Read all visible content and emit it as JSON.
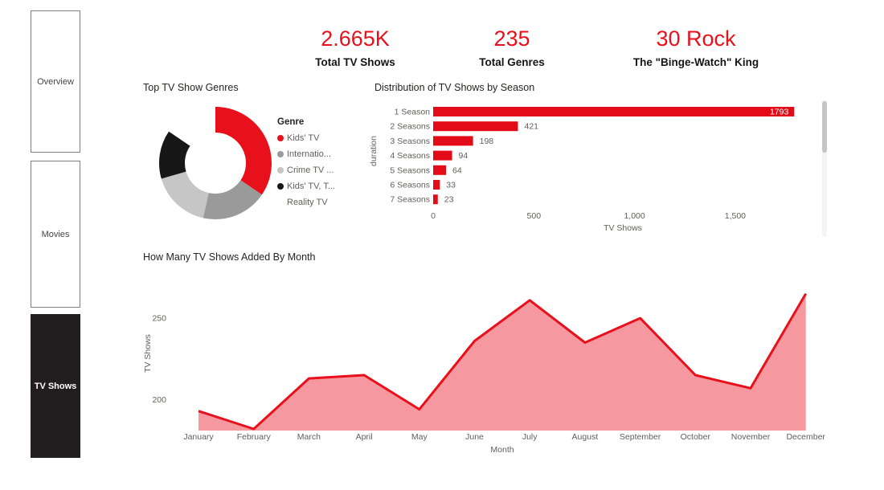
{
  "colors": {
    "accent": "#e8101a",
    "bar_red": "#e20b17",
    "area_line": "#e8101a",
    "area_fill": "#f5989f",
    "sidebar_active_bg": "#221e1f",
    "text_dark": "#252423",
    "text_muted": "#605e5c"
  },
  "sidebar": {
    "items": [
      {
        "label": "Overview",
        "active": false
      },
      {
        "label": "Movies",
        "active": false
      },
      {
        "label": "TV Shows",
        "active": true
      }
    ]
  },
  "kpis": [
    {
      "value": "2.665K",
      "label": "Total TV Shows"
    },
    {
      "value": "235",
      "label": "Total Genres"
    },
    {
      "value": "30 Rock",
      "label": "The \"Binge-Watch\" King"
    }
  ],
  "chart_data": [
    {
      "type": "pie",
      "donut": true,
      "title": "Top TV Show Genres",
      "legend_title": "Genre",
      "legend_position": "right",
      "slices": [
        {
          "label": "Kids' TV",
          "pct": 34.5,
          "color": "#e8101a"
        },
        {
          "label": "Internatio...",
          "pct": 19.0,
          "color": "#9a9a9a"
        },
        {
          "label": "Crime TV ...",
          "pct": 17.0,
          "color": "#c6c6c6"
        },
        {
          "label": "Kids' TV, T...",
          "pct": 14.0,
          "color": "#171717"
        },
        {
          "label": "Reality TV",
          "pct": 15.5,
          "color": "#ffffff"
        }
      ]
    },
    {
      "type": "bar",
      "orientation": "horizontal",
      "title": "Distribution of TV Shows by Season",
      "categories": [
        "1 Season",
        "2 Seasons",
        "3 Seasons",
        "4 Seasons",
        "5 Seasons",
        "6 Seasons",
        "7 Seasons"
      ],
      "values": [
        1793,
        421,
        198,
        94,
        64,
        33,
        23
      ],
      "value_labels": [
        "1793",
        "421",
        "198",
        "94",
        "64",
        "33",
        "23"
      ],
      "xlabel": "TV Shows",
      "ylabel": "duration",
      "xticks": {
        "values": [
          0,
          500,
          1000,
          1500
        ],
        "labels": [
          "0",
          "500",
          "1,000",
          "1,500"
        ]
      },
      "xlim": [
        0,
        2000
      ],
      "grid": false,
      "first_label_inside": true
    },
    {
      "type": "area",
      "title": "How Many TV Shows Added By Month",
      "categories": [
        "January",
        "February",
        "March",
        "April",
        "May",
        "June",
        "July",
        "August",
        "September",
        "October",
        "November",
        "December"
      ],
      "values": [
        193,
        182,
        213,
        215,
        194,
        236,
        261,
        235,
        250,
        215,
        207,
        265
      ],
      "xlabel": "Month",
      "ylabel": "TV Shows",
      "yticks": [
        200,
        250
      ],
      "ylim": [
        181,
        270
      ],
      "grid": false,
      "legend_position": "none"
    }
  ]
}
